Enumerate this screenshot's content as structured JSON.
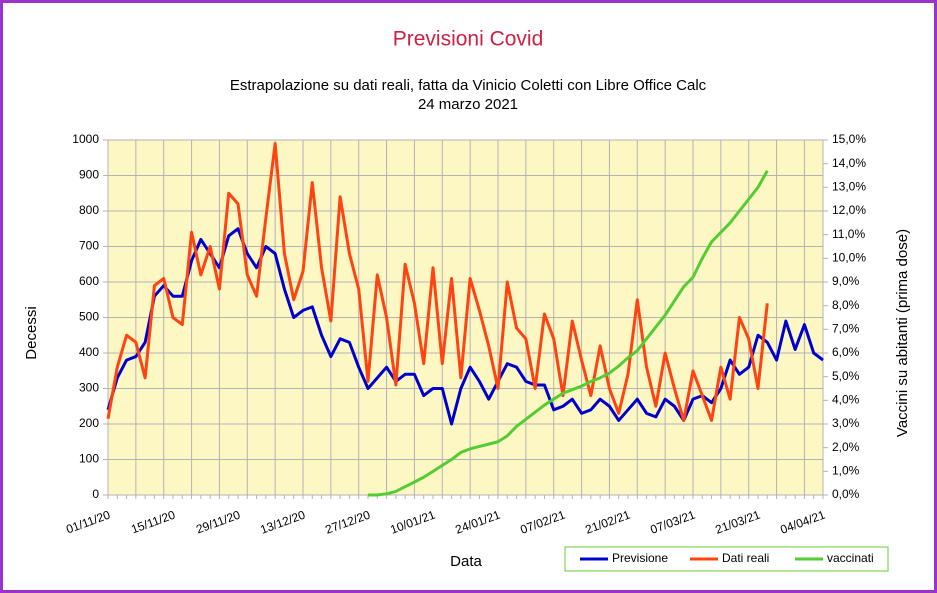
{
  "chart_data": {
    "type": "line",
    "title": "Previsioni Covid",
    "subtitle": [
      "Estrapolazione su dati reali, fatta da Vinicio Coletti con Libre Office Calc",
      "24 marzo 2021"
    ],
    "x_label": "Data",
    "y_label": "Decessi",
    "y2_label": "Vaccini su abitanti (prima dose)",
    "categories": [
      "01/11/20",
      null,
      null,
      null,
      null,
      null,
      null,
      "15/11/20",
      null,
      null,
      null,
      null,
      null,
      null,
      "29/11/20",
      null,
      null,
      null,
      null,
      null,
      null,
      "13/12/20",
      null,
      null,
      null,
      null,
      null,
      null,
      "27/12/20",
      null,
      null,
      null,
      null,
      null,
      null,
      "10/01/21",
      null,
      null,
      null,
      null,
      null,
      null,
      "24/01/21",
      null,
      null,
      null,
      null,
      null,
      null,
      "07/02/21",
      null,
      null,
      null,
      null,
      null,
      null,
      "21/02/21",
      null,
      null,
      null,
      null,
      null,
      null,
      "07/03/21",
      null,
      null,
      null,
      null,
      null,
      null,
      "21/03/21",
      null,
      null,
      null,
      null,
      null,
      null,
      "04/04/21"
    ],
    "series": [
      {
        "name": "Previsione",
        "color": "#0000cc",
        "values": [
          240,
          330,
          380,
          390,
          430,
          560,
          590,
          560,
          560,
          660,
          720,
          680,
          640,
          730,
          750,
          680,
          640,
          700,
          680,
          580,
          500,
          520,
          530,
          450,
          390,
          440,
          430,
          360,
          300,
          330,
          360,
          320,
          340,
          340,
          280,
          300,
          300,
          200,
          300,
          360,
          320,
          270,
          320,
          370,
          360,
          320,
          310,
          310,
          240,
          250,
          270,
          230,
          240,
          270,
          250,
          210,
          240,
          270,
          230,
          220,
          270,
          250,
          210,
          270,
          280,
          260,
          300,
          380,
          340,
          360,
          450,
          430,
          380,
          490,
          410,
          480,
          400,
          380
        ]
      },
      {
        "name": "Dati reali",
        "color": "#ff4411",
        "values": [
          215,
          360,
          450,
          430,
          330,
          590,
          610,
          500,
          480,
          740,
          620,
          700,
          580,
          850,
          820,
          620,
          560,
          780,
          990,
          680,
          550,
          630,
          880,
          640,
          490,
          840,
          680,
          580,
          320,
          620,
          500,
          310,
          650,
          540,
          370,
          640,
          370,
          610,
          330,
          610,
          520,
          420,
          300,
          600,
          470,
          440,
          300,
          510,
          440,
          280,
          490,
          380,
          280,
          420,
          300,
          230,
          340,
          550,
          360,
          250,
          400,
          300,
          210,
          350,
          280,
          210,
          360,
          270,
          500,
          440,
          300,
          540,
          null,
          null,
          null,
          null,
          null,
          null
        ]
      },
      {
        "name": "vaccinati",
        "color": "#55cc33",
        "axis": "y2",
        "values": [
          null,
          null,
          null,
          null,
          null,
          null,
          null,
          null,
          null,
          null,
          null,
          null,
          null,
          null,
          null,
          null,
          null,
          null,
          null,
          null,
          null,
          null,
          null,
          null,
          null,
          null,
          null,
          null,
          0,
          0,
          0.05,
          0.15,
          0.35,
          0.55,
          0.75,
          1.0,
          1.25,
          1.5,
          1.8,
          1.95,
          2.05,
          2.15,
          2.25,
          2.5,
          2.9,
          3.2,
          3.5,
          3.8,
          4.05,
          4.3,
          4.45,
          4.6,
          4.8,
          4.95,
          5.15,
          5.45,
          5.8,
          6.1,
          6.6,
          7.1,
          7.6,
          8.2,
          8.8,
          9.2,
          10.0,
          10.7,
          11.1,
          11.5,
          12.0,
          12.5,
          13.0,
          13.7,
          null,
          null,
          null,
          null,
          null,
          null
        ]
      }
    ],
    "ylim": [
      0,
      1000
    ],
    "yticks": [
      0,
      100,
      200,
      300,
      400,
      500,
      600,
      700,
      800,
      900,
      1000
    ],
    "y2lim": [
      0,
      15
    ],
    "y2ticks": [
      {
        "value": 0,
        "label": "0,0%"
      },
      {
        "value": 1,
        "label": "1,0%"
      },
      {
        "value": 2,
        "label": "2,0%"
      },
      {
        "value": 3,
        "label": "3,0%"
      },
      {
        "value": 4,
        "label": "4,0%"
      },
      {
        "value": 5,
        "label": "5,0%"
      },
      {
        "value": 6,
        "label": "6,0%"
      },
      {
        "value": 7,
        "label": "7,0%"
      },
      {
        "value": 8,
        "label": "8,0%"
      },
      {
        "value": 9,
        "label": "9,0%"
      },
      {
        "value": 10,
        "label": "10,0%"
      },
      {
        "value": 11,
        "label": "11,0%"
      },
      {
        "value": 12,
        "label": "12,0%"
      },
      {
        "value": 13,
        "label": "13,0%"
      },
      {
        "value": 14,
        "label": "14,0%"
      },
      {
        "value": 15,
        "label": "15,0%"
      }
    ],
    "grid": true,
    "legend": "bottom-right"
  }
}
